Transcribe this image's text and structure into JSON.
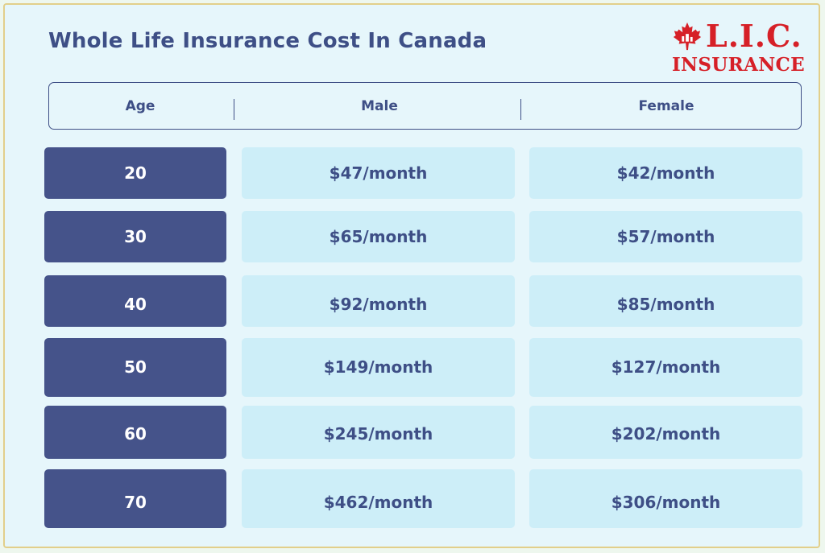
{
  "title": "Whole Life Insurance Cost In Canada",
  "logo": {
    "line1": "L.I.C.",
    "line2": "INSURANCE",
    "icon": "maple-leaf-icon",
    "color": "#d62027"
  },
  "table": {
    "headers": {
      "age": "Age",
      "male": "Male",
      "female": "Female"
    },
    "rows": [
      {
        "age": "20",
        "male": "$47/month",
        "female": "$42/month"
      },
      {
        "age": "30",
        "male": "$65/month",
        "female": "$57/month"
      },
      {
        "age": "40",
        "male": "$92/month",
        "female": "$85/month"
      },
      {
        "age": "50",
        "male": "$149/month",
        "female": "$127/month"
      },
      {
        "age": "60",
        "male": "$245/month",
        "female": "$202/month"
      },
      {
        "age": "70",
        "male": "$462/month",
        "female": "$306/month"
      }
    ]
  },
  "colors": {
    "accent": "#3e4f86",
    "age_cell": "#45538a",
    "value_cell": "#cdeef8",
    "background": "#e6f6fb"
  }
}
